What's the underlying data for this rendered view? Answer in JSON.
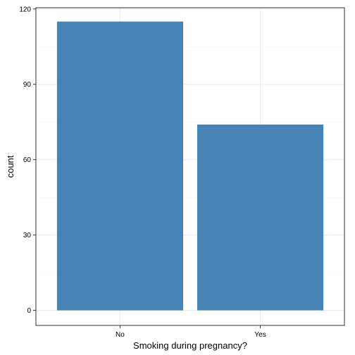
{
  "chart_data": {
    "type": "bar",
    "categories": [
      "No",
      "Yes"
    ],
    "values": [
      115,
      74
    ],
    "title": "",
    "xlabel": "Smoking during pregnancy?",
    "ylabel": "count",
    "ylim": [
      -6,
      120.5
    ],
    "yticks": [
      0,
      30,
      60,
      90,
      120
    ],
    "ytick_labels": [
      "0",
      "30",
      "60",
      "90",
      "120"
    ],
    "grid": true,
    "legend": "none",
    "bar_color": "#4682B4",
    "grid_color": "#EBEBEB",
    "panel_border_color": "#333333"
  }
}
